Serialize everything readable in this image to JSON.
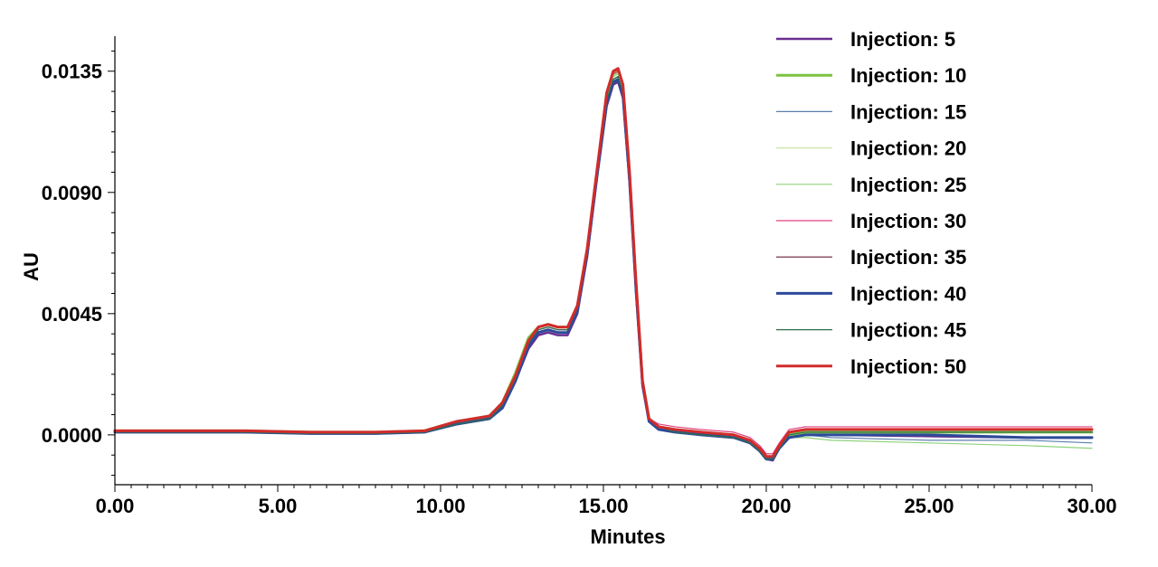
{
  "chart_data": {
    "type": "line",
    "title": "",
    "xlabel": "Minutes",
    "ylabel": "AU",
    "xlim": [
      0,
      30
    ],
    "ylim": [
      -0.00185,
      0.0148
    ],
    "grid": false,
    "legend_position": "top-right",
    "x_ticks": [
      0,
      5,
      10,
      15,
      20,
      25,
      30
    ],
    "x_tick_labels": [
      "0.00",
      "5.00",
      "10.00",
      "15.00",
      "20.00",
      "25.00",
      "30.00"
    ],
    "y_ticks": [
      0.0,
      0.0045,
      0.009,
      0.0135
    ],
    "y_tick_labels": [
      "0.0000",
      "0.0045",
      "0.0090",
      "0.0135"
    ],
    "x": [
      0,
      2,
      4,
      6,
      8,
      9.5,
      10.5,
      11.5,
      11.9,
      12.3,
      12.7,
      13.0,
      13.3,
      13.6,
      13.9,
      14.2,
      14.5,
      14.8,
      15.1,
      15.3,
      15.45,
      15.6,
      15.8,
      16.0,
      16.2,
      16.4,
      16.7,
      17.2,
      18,
      19,
      19.5,
      19.8,
      20.0,
      20.2,
      20.4,
      20.7,
      21.2,
      22,
      25,
      28,
      30
    ],
    "series": [
      {
        "name": "Injection: 5",
        "color": "#6a2d8f",
        "width": 2.4,
        "values": [
          0.0001,
          0.0001,
          0.0001,
          5e-05,
          5e-05,
          0.0001,
          0.0004,
          0.0006,
          0.001,
          0.002,
          0.0032,
          0.0037,
          0.0038,
          0.0037,
          0.0037,
          0.0045,
          0.0066,
          0.0095,
          0.0122,
          0.013,
          0.0131,
          0.0125,
          0.0094,
          0.0053,
          0.0018,
          0.0005,
          0.0002,
          0.0001,
          5e-05,
          -0.0001,
          -0.0003,
          -0.0006,
          -0.0009,
          -0.00095,
          -0.0005,
          -0.0001,
          0.0,
          0.0,
          -5e-05,
          -0.0001,
          -0.0001
        ]
      },
      {
        "name": "Injection: 10",
        "color": "#7cc242",
        "width": 3,
        "values": [
          0.00015,
          0.00015,
          0.00015,
          0.0001,
          0.0001,
          0.00015,
          0.0005,
          0.0007,
          0.0012,
          0.0023,
          0.0036,
          0.004,
          0.0041,
          0.004,
          0.004,
          0.0048,
          0.0069,
          0.0098,
          0.0126,
          0.0134,
          0.0135,
          0.0129,
          0.0097,
          0.0056,
          0.002,
          0.0006,
          0.0003,
          0.0002,
          0.0001,
          0.0,
          -0.0002,
          -0.0005,
          -0.0008,
          -0.00085,
          -0.0004,
          0.0,
          0.0001,
          0.0001,
          0.0001,
          0.0001,
          0.0001
        ]
      },
      {
        "name": "Injection: 15",
        "color": "#5b7fae",
        "width": 1.2,
        "values": [
          0.0001,
          0.0001,
          0.0001,
          0.0001,
          0.0001,
          0.0001,
          0.0004,
          0.0006,
          0.0011,
          0.0021,
          0.0034,
          0.0039,
          0.004,
          0.0039,
          0.0039,
          0.0047,
          0.0068,
          0.0097,
          0.0124,
          0.0132,
          0.0133,
          0.0127,
          0.0096,
          0.0055,
          0.0019,
          0.0006,
          0.0003,
          0.0001,
          0.0,
          -0.0001,
          -0.0003,
          -0.0006,
          -0.0009,
          -0.0009,
          -0.0005,
          -0.0001,
          0.0,
          -0.0001,
          -0.0002,
          -0.0002,
          -0.0003
        ]
      },
      {
        "name": "Injection: 20",
        "color": "#c9e3a4",
        "width": 1.2,
        "values": [
          0.00015,
          0.00015,
          0.00015,
          0.0001,
          0.0001,
          0.00015,
          0.0005,
          0.0007,
          0.0012,
          0.0022,
          0.0035,
          0.004,
          0.0041,
          0.004,
          0.004,
          0.0048,
          0.0069,
          0.0098,
          0.0125,
          0.0133,
          0.0134,
          0.0128,
          0.0097,
          0.0056,
          0.002,
          0.0006,
          0.0003,
          0.0002,
          0.0001,
          0.0,
          -0.0002,
          -0.0005,
          -0.0008,
          -0.0008,
          -0.0004,
          0.0,
          0.0001,
          0.0001,
          0.0001,
          0.0001,
          0.0001
        ]
      },
      {
        "name": "Injection: 25",
        "color": "#8ed27a",
        "width": 1.2,
        "values": [
          0.00015,
          0.00015,
          0.00015,
          0.0001,
          0.0001,
          0.00015,
          0.0005,
          0.0007,
          0.0012,
          0.0022,
          0.0035,
          0.004,
          0.0041,
          0.004,
          0.004,
          0.0048,
          0.0069,
          0.0098,
          0.0125,
          0.0133,
          0.0134,
          0.0128,
          0.0097,
          0.0056,
          0.002,
          0.0006,
          0.0003,
          0.0002,
          0.0001,
          0.0,
          -0.0002,
          -0.0005,
          -0.0008,
          -0.0008,
          -0.0004,
          -0.0001,
          -0.0001,
          -0.0002,
          -0.0003,
          -0.0004,
          -0.0005
        ]
      },
      {
        "name": "Injection: 30",
        "color": "#e0407f",
        "width": 1.2,
        "values": [
          0.00015,
          0.00015,
          0.00015,
          0.0001,
          0.0001,
          0.00015,
          0.0005,
          0.0007,
          0.0012,
          0.0022,
          0.0035,
          0.004,
          0.0041,
          0.004,
          0.004,
          0.0048,
          0.0069,
          0.0098,
          0.0126,
          0.0134,
          0.0135,
          0.0129,
          0.0097,
          0.0056,
          0.002,
          0.0006,
          0.0004,
          0.0003,
          0.0002,
          0.0001,
          -0.0001,
          -0.0004,
          -0.0007,
          -0.0007,
          -0.0003,
          0.0002,
          0.0003,
          0.0003,
          0.0003,
          0.0003,
          0.0003
        ]
      },
      {
        "name": "Injection: 35",
        "color": "#6b1a3a",
        "width": 1.2,
        "values": [
          0.0001,
          0.0001,
          0.0001,
          5e-05,
          5e-05,
          0.0001,
          0.0004,
          0.0006,
          0.0011,
          0.0021,
          0.0034,
          0.0039,
          0.004,
          0.0039,
          0.0039,
          0.0047,
          0.0068,
          0.0097,
          0.0124,
          0.0132,
          0.0133,
          0.0127,
          0.0096,
          0.0055,
          0.0019,
          0.0006,
          0.0003,
          0.0002,
          0.0001,
          0.0,
          -0.0002,
          -0.0005,
          -0.0008,
          -0.0008,
          -0.0004,
          0.0001,
          0.0002,
          0.0002,
          0.0002,
          0.0002,
          0.0002
        ]
      },
      {
        "name": "Injection: 40",
        "color": "#2c4a9a",
        "width": 3,
        "values": [
          0.0001,
          0.0001,
          0.0001,
          5e-05,
          5e-05,
          0.0001,
          0.0004,
          0.0006,
          0.001,
          0.002,
          0.0033,
          0.0038,
          0.0039,
          0.0038,
          0.0038,
          0.0046,
          0.0067,
          0.0096,
          0.0123,
          0.0131,
          0.0132,
          0.0126,
          0.0095,
          0.0054,
          0.0019,
          0.0005,
          0.0002,
          0.0001,
          0.0,
          -0.0001,
          -0.0003,
          -0.0006,
          -0.0009,
          -0.0009,
          -0.0005,
          -0.0001,
          0.0,
          0.0,
          0.0,
          -0.0001,
          -0.0001
        ]
      },
      {
        "name": "Injection: 45",
        "color": "#2f6e4a",
        "width": 1.2,
        "values": [
          0.0001,
          0.0001,
          0.0001,
          5e-05,
          5e-05,
          0.0001,
          0.0004,
          0.0006,
          0.0011,
          0.0021,
          0.0034,
          0.0039,
          0.004,
          0.0039,
          0.0039,
          0.0047,
          0.0068,
          0.0097,
          0.0124,
          0.0132,
          0.0133,
          0.0127,
          0.0096,
          0.0055,
          0.0019,
          0.0006,
          0.0003,
          0.0001,
          0.0,
          -0.0001,
          -0.0003,
          -0.0006,
          -0.0009,
          -0.0009,
          -0.0005,
          0.0,
          0.0001,
          0.0001,
          0.0001,
          0.0001,
          0.0001
        ]
      },
      {
        "name": "Injection: 50",
        "color": "#d22b2b",
        "width": 3,
        "values": [
          0.00015,
          0.00015,
          0.00015,
          0.0001,
          0.0001,
          0.00015,
          0.0005,
          0.0007,
          0.0012,
          0.0022,
          0.0035,
          0.004,
          0.0041,
          0.004,
          0.004,
          0.0048,
          0.0069,
          0.0098,
          0.0127,
          0.0135,
          0.0136,
          0.013,
          0.0098,
          0.0057,
          0.002,
          0.0006,
          0.0003,
          0.0002,
          0.0001,
          0.0,
          -0.0002,
          -0.0005,
          -0.0008,
          -0.0008,
          -0.0004,
          0.0001,
          0.0002,
          0.0002,
          0.0002,
          0.0002,
          0.0002
        ]
      }
    ]
  }
}
